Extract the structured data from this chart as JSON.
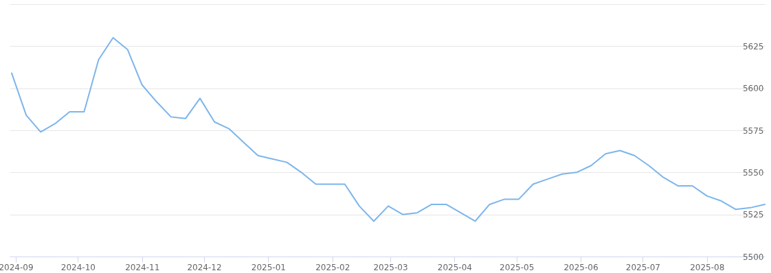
{
  "chart_data": {
    "type": "line",
    "x": [
      "2024-08-30",
      "2024-09-06",
      "2024-09-13",
      "2024-09-20",
      "2024-09-27",
      "2024-10-04",
      "2024-10-11",
      "2024-10-18",
      "2024-10-25",
      "2024-11-01",
      "2024-11-08",
      "2024-11-15",
      "2024-11-22",
      "2024-11-29",
      "2024-12-06",
      "2024-12-13",
      "2024-12-20",
      "2024-12-27",
      "2025-01-03",
      "2025-01-10",
      "2025-01-17",
      "2025-01-24",
      "2025-01-31",
      "2025-02-07",
      "2025-02-14",
      "2025-02-21",
      "2025-02-28",
      "2025-03-07",
      "2025-03-14",
      "2025-03-21",
      "2025-03-28",
      "2025-04-04",
      "2025-04-11",
      "2025-04-18",
      "2025-04-25",
      "2025-05-02",
      "2025-05-09",
      "2025-05-16",
      "2025-05-23",
      "2025-05-30",
      "2025-06-06",
      "2025-06-13",
      "2025-06-20",
      "2025-06-27",
      "2025-07-04",
      "2025-07-11",
      "2025-07-18",
      "2025-07-25",
      "2025-08-01",
      "2025-08-08",
      "2025-08-15",
      "2025-08-22",
      "2025-08-29"
    ],
    "series": [
      {
        "color": "#7cb5ec",
        "values": [
          5609,
          5584,
          5574,
          5579,
          5586,
          5586,
          5617,
          5630,
          5623,
          5602,
          5592,
          5583,
          5582,
          5594,
          5580,
          5576,
          5568,
          5560,
          5558,
          5556,
          5550,
          5543,
          5543,
          5543,
          5530,
          5521,
          5530,
          5525,
          5526,
          5531,
          5531,
          5526,
          5521,
          5531,
          5534,
          5534,
          5543,
          5546,
          5549,
          5550,
          5554,
          5561,
          5563,
          5560,
          5554,
          5547,
          5542,
          5542,
          5536,
          5533,
          5528,
          5529,
          5531
        ]
      }
    ],
    "xlim": [
      "2024-08-29",
      "2025-08-29"
    ],
    "xticks": [
      {
        "value": "2024-09-01",
        "label": "2024-09"
      },
      {
        "value": "2024-10-01",
        "label": "2024-10"
      },
      {
        "value": "2024-11-01",
        "label": "2024-11"
      },
      {
        "value": "2024-12-01",
        "label": "2024-12"
      },
      {
        "value": "2025-01-01",
        "label": "2025-01"
      },
      {
        "value": "2025-02-01",
        "label": "2025-02"
      },
      {
        "value": "2025-03-01",
        "label": "2025-03"
      },
      {
        "value": "2025-04-01",
        "label": "2025-04"
      },
      {
        "value": "2025-05-01",
        "label": "2025-05"
      },
      {
        "value": "2025-06-01",
        "label": "2025-06"
      },
      {
        "value": "2025-07-01",
        "label": "2025-07"
      },
      {
        "value": "2025-08-01",
        "label": "2025-08"
      }
    ],
    "ylim": [
      5500,
      5650
    ],
    "yticks": [
      5500,
      5525,
      5550,
      5575,
      5600,
      5625,
      {
        "value": 5650,
        "label": null
      }
    ],
    "grid": "y",
    "marker": "none",
    "line_style": "solid"
  }
}
